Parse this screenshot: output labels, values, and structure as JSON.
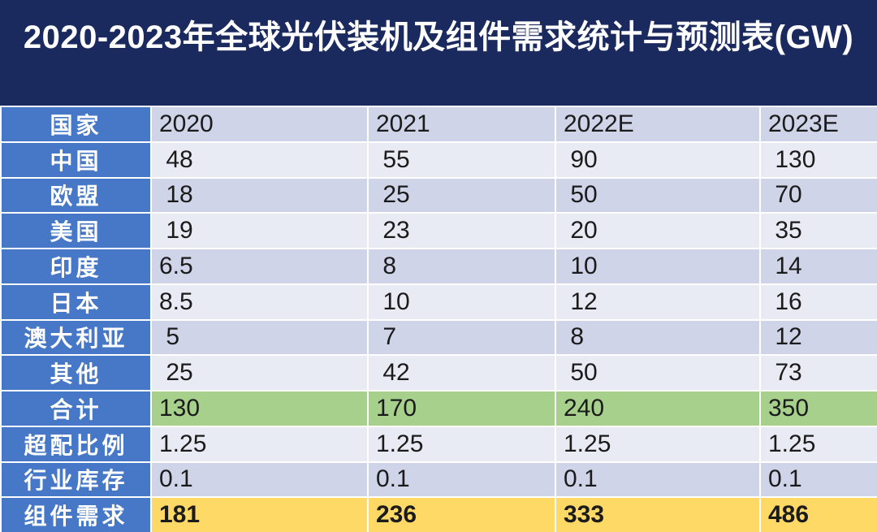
{
  "title": "2020-2023年全球光伏装机及组件需求统计与预测表(GW)",
  "table": {
    "header": {
      "country_label": "国家",
      "years": [
        "2020",
        "2021",
        "2022E",
        "2023E"
      ]
    },
    "rows": [
      {
        "label": "中国",
        "values": [
          " 48",
          " 55",
          " 90",
          " 130"
        ]
      },
      {
        "label": "欧盟",
        "values": [
          " 18",
          " 25",
          " 50",
          " 70"
        ]
      },
      {
        "label": "美国",
        "values": [
          " 19",
          " 23",
          " 20",
          " 35"
        ]
      },
      {
        "label": "印度",
        "values": [
          "6.5",
          " 8",
          " 10",
          " 14"
        ]
      },
      {
        "label": "日本",
        "values": [
          "8.5",
          " 10",
          " 12",
          " 16"
        ]
      },
      {
        "label": "澳大利亚",
        "values": [
          " 5",
          " 7",
          " 8",
          " 12"
        ]
      },
      {
        "label": "其他",
        "values": [
          " 25",
          " 42",
          " 50",
          " 73"
        ]
      },
      {
        "label": "合计",
        "values": [
          "130",
          "170",
          "240",
          "350"
        ]
      },
      {
        "label": "超配比例",
        "values": [
          "1.25",
          "1.25",
          "1.25",
          "1.25"
        ]
      },
      {
        "label": "行业库存",
        "values": [
          "0.1",
          "0.1",
          "0.1",
          "0.1"
        ]
      },
      {
        "label": "组件需求",
        "values": [
          "181",
          "236",
          "333",
          "486"
        ]
      }
    ]
  },
  "colors": {
    "title_bg": "#1B2A5E",
    "title_text": "#FFFFFF",
    "label_bg": "#4678C7",
    "label_text": "#FFFFFF",
    "band_light": "#E9EBF4",
    "band_medium": "#CFD4E8",
    "total_row": "#A6D08C",
    "demand_row": "#FFD966",
    "grid": "#FFFFFF",
    "text": "#1B1B1B"
  },
  "chart_data": {
    "type": "table",
    "title": "2020-2023年全球光伏装机及组件需求统计与预测表(GW)",
    "columns": [
      "国家",
      "2020",
      "2021",
      "2022E",
      "2023E"
    ],
    "rows": [
      [
        "中国",
        48,
        55,
        90,
        130
      ],
      [
        "欧盟",
        18,
        25,
        50,
        70
      ],
      [
        "美国",
        19,
        23,
        20,
        35
      ],
      [
        "印度",
        6.5,
        8,
        10,
        14
      ],
      [
        "日本",
        8.5,
        10,
        12,
        16
      ],
      [
        "澳大利亚",
        5,
        7,
        8,
        12
      ],
      [
        "其他",
        25,
        42,
        50,
        73
      ],
      [
        "合计",
        130,
        170,
        240,
        350
      ],
      [
        "超配比例",
        1.25,
        1.25,
        1.25,
        1.25
      ],
      [
        "行业库存",
        0.1,
        0.1,
        0.1,
        0.1
      ],
      [
        "组件需求",
        181,
        236,
        333,
        486
      ]
    ],
    "unit": "GW",
    "highlight_rows": {
      "合计": "green",
      "组件需求": "yellow"
    }
  }
}
